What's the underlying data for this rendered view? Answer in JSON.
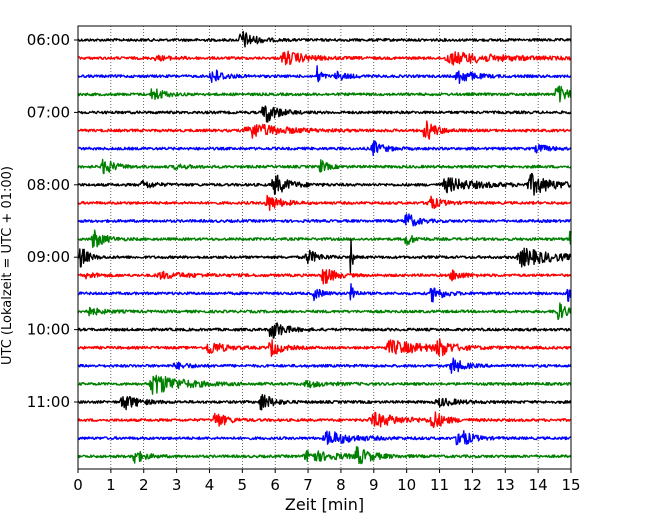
{
  "chart_data": {
    "type": "line",
    "subtype": "helicorder",
    "xlabel": "Zeit  [min]",
    "ylabel": "UTC (Lokalzeit = UTC + 01:00)",
    "xlim": [
      0,
      15
    ],
    "x_ticks": [
      "0",
      "1",
      "2",
      "3",
      "4",
      "5",
      "6",
      "7",
      "8",
      "9",
      "10",
      "11",
      "12",
      "13",
      "14",
      "15"
    ],
    "y_tick_labels": [
      "06:00",
      "07:00",
      "08:00",
      "09:00",
      "10:00",
      "11:00"
    ],
    "grid": "vertical dotted lines at each minute",
    "trace_interval_min": 15,
    "trace_colors": [
      "#000000",
      "#ff0000",
      "#0000ff",
      "#008000"
    ],
    "traces": [
      {
        "start": "06:00",
        "bursts": [
          [
            5.0,
            9,
            0.35
          ]
        ]
      },
      {
        "start": "06:15",
        "bursts": [
          [
            6.3,
            7,
            0.6
          ],
          [
            11.3,
            6,
            1.5
          ],
          [
            2.4,
            2,
            0.5
          ]
        ]
      },
      {
        "start": "06:30",
        "bursts": [
          [
            4.1,
            8,
            0.3
          ],
          [
            7.3,
            10,
            0.1
          ],
          [
            11.6,
            7,
            0.4
          ],
          [
            7.9,
            4,
            0.3
          ]
        ]
      },
      {
        "start": "06:45",
        "bursts": [
          [
            2.3,
            7,
            0.3
          ],
          [
            14.6,
            9,
            0.3
          ]
        ]
      },
      {
        "start": "07:00",
        "bursts": [
          [
            5.7,
            11,
            0.35
          ]
        ]
      },
      {
        "start": "07:15",
        "bursts": [
          [
            5.2,
            8,
            0.9
          ],
          [
            10.6,
            10,
            0.3
          ]
        ]
      },
      {
        "start": "07:30",
        "bursts": [
          [
            9.0,
            7,
            0.3
          ],
          [
            14.0,
            4,
            0.3
          ]
        ]
      },
      {
        "start": "07:45",
        "bursts": [
          [
            0.8,
            8,
            0.3
          ],
          [
            7.4,
            6,
            0.2
          ],
          [
            3.0,
            2,
            0.4
          ]
        ]
      },
      {
        "start": "08:00",
        "bursts": [
          [
            6.0,
            10,
            0.4
          ],
          [
            2.0,
            4,
            0.3
          ],
          [
            11.2,
            7,
            0.9
          ],
          [
            13.8,
            10,
            0.6
          ]
        ]
      },
      {
        "start": "08:15",
        "bursts": [
          [
            5.8,
            8,
            0.35
          ],
          [
            10.7,
            7,
            0.3
          ]
        ]
      },
      {
        "start": "08:30",
        "bursts": [
          [
            10.0,
            8,
            0.3
          ]
        ]
      },
      {
        "start": "08:45",
        "bursts": [
          [
            0.5,
            9,
            0.3
          ],
          [
            10.0,
            6,
            0.2
          ],
          [
            15.0,
            9,
            0.2
          ]
        ]
      },
      {
        "start": "09:00",
        "bursts": [
          [
            0.1,
            11,
            0.2
          ],
          [
            7.0,
            7,
            0.3
          ],
          [
            8.3,
            20,
            0.05
          ],
          [
            13.5,
            9,
            0.9
          ]
        ]
      },
      {
        "start": "09:15",
        "bursts": [
          [
            7.5,
            9,
            0.3
          ],
          [
            2.5,
            3,
            0.9
          ],
          [
            11.4,
            5,
            0.3
          ],
          [
            0.3,
            3,
            0.3
          ]
        ]
      },
      {
        "start": "09:30",
        "bursts": [
          [
            8.3,
            14,
            0.1
          ],
          [
            7.2,
            6,
            0.2
          ],
          [
            10.8,
            8,
            0.3
          ],
          [
            14.9,
            9,
            0.2
          ]
        ]
      },
      {
        "start": "09:45",
        "bursts": [
          [
            14.6,
            9,
            0.3
          ],
          [
            0.3,
            4,
            0.4
          ]
        ]
      },
      {
        "start": "10:00",
        "bursts": [
          [
            5.9,
            10,
            0.35
          ]
        ]
      },
      {
        "start": "10:15",
        "bursts": [
          [
            4.0,
            7,
            0.4
          ],
          [
            5.9,
            8,
            0.3
          ],
          [
            9.5,
            7,
            1.1
          ],
          [
            11.0,
            8,
            0.3
          ]
        ]
      },
      {
        "start": "10:30",
        "bursts": [
          [
            11.4,
            8,
            0.3
          ],
          [
            3.0,
            3,
            0.4
          ]
        ]
      },
      {
        "start": "10:45",
        "bursts": [
          [
            2.3,
            11,
            0.8
          ],
          [
            7.0,
            3,
            0.5
          ]
        ]
      },
      {
        "start": "11:00",
        "bursts": [
          [
            1.4,
            8,
            0.4
          ],
          [
            5.6,
            9,
            0.3
          ],
          [
            11.0,
            4,
            0.5
          ]
        ]
      },
      {
        "start": "11:15",
        "bursts": [
          [
            4.2,
            8,
            0.3
          ],
          [
            9.0,
            7,
            0.8
          ],
          [
            10.8,
            9,
            0.3
          ]
        ]
      },
      {
        "start": "11:30",
        "bursts": [
          [
            7.6,
            7,
            0.7
          ],
          [
            11.6,
            11,
            0.3
          ]
        ]
      },
      {
        "start": "11:45",
        "bursts": [
          [
            1.7,
            7,
            0.3
          ],
          [
            7.0,
            6,
            0.8
          ],
          [
            8.5,
            8,
            0.4
          ]
        ]
      }
    ]
  }
}
